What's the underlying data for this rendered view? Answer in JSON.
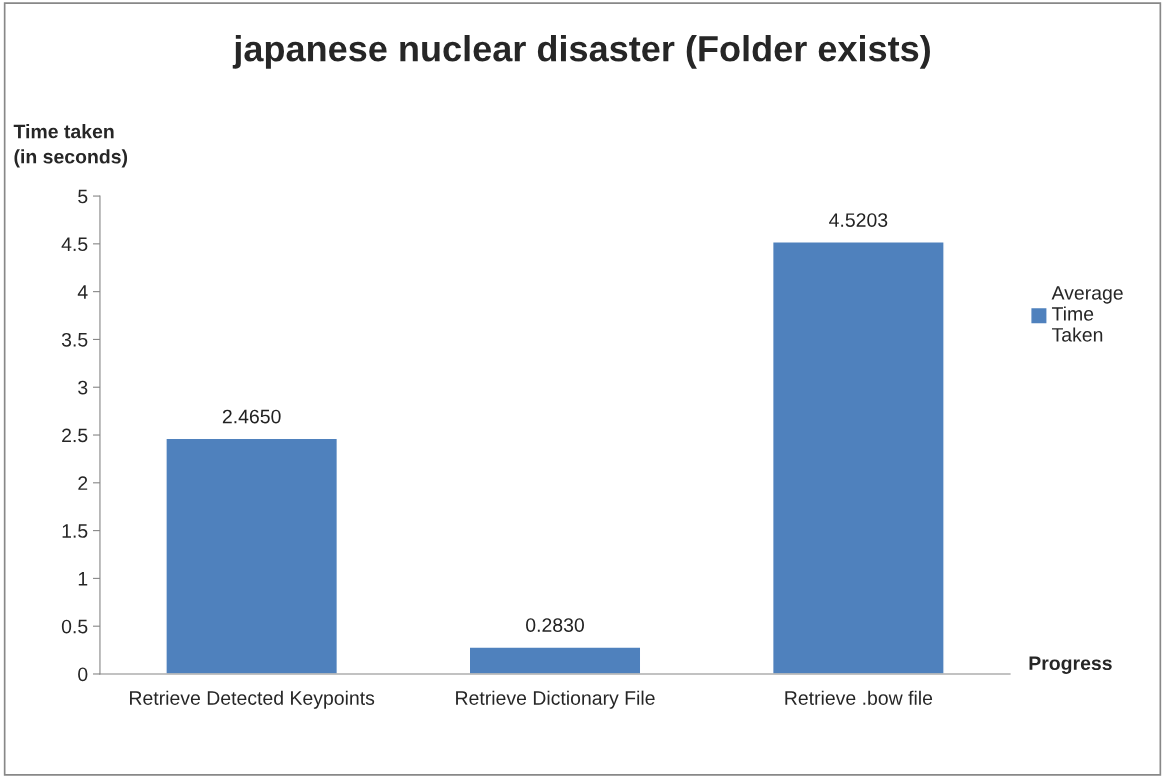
{
  "chart_data": {
    "type": "bar",
    "title": "japanese nuclear disaster (Folder exists)",
    "ylabel": "Time taken\n(in seconds)",
    "xlabel": "Progress",
    "categories": [
      "Retrieve Detected Keypoints",
      "Retrieve Dictionary File",
      "Retrieve .bow file"
    ],
    "series": [
      {
        "name": "Average\nTime\nTaken",
        "color": "#4f81bd",
        "values": [
          2.465,
          0.283,
          4.5203
        ],
        "value_labels": [
          "2.4650",
          "0.2830",
          "4.5203"
        ]
      }
    ],
    "ylim": [
      0,
      5
    ],
    "yticks": [
      0,
      0.5,
      1,
      1.5,
      2,
      2.5,
      3,
      3.5,
      4,
      4.5,
      5
    ],
    "grid": false,
    "legend": "right"
  }
}
